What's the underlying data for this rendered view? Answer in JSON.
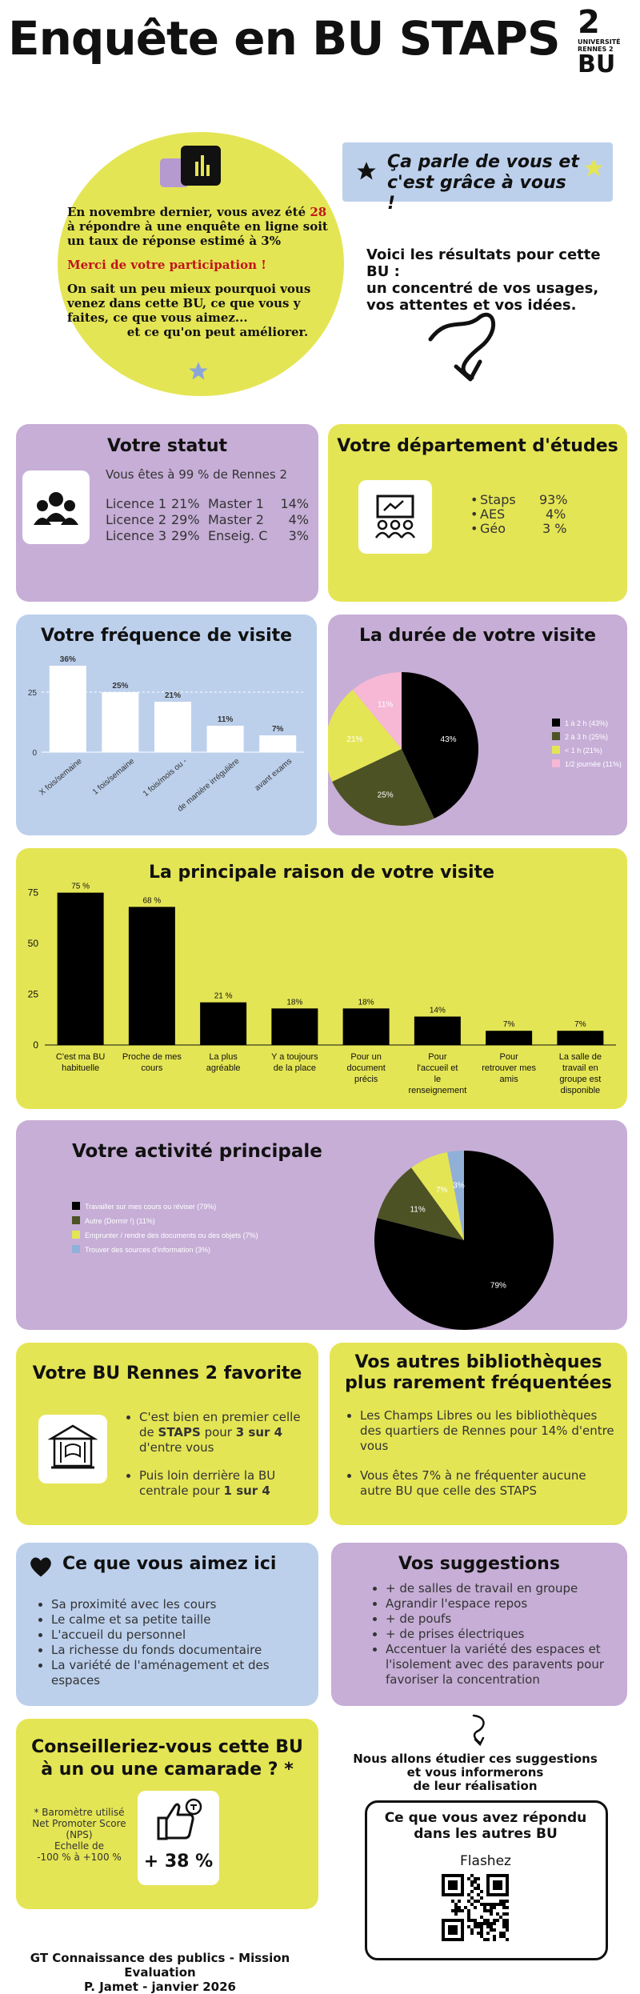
{
  "header": {
    "title": "Enquête en BU STAPS",
    "logo": {
      "number": "2",
      "line1": "UNIVERSITÉ",
      "line2": "RENNES 2",
      "bu": "BU"
    }
  },
  "intro": {
    "line1a": "En novembre dernier, vous avez été ",
    "line1num": "28",
    "line1b": " à répondre à une enquête en ligne soit un taux de réponse estimé à 3%",
    "thanks": "Merci de votre participation !",
    "outro": "On sait un peu mieux pourquoi vous venez dans cette BU, ce que vous y faites, ce que vous aimez...",
    "outro2": "et ce qu'on peut améliorer."
  },
  "badge": {
    "line1": "Ça parle de vous et",
    "line2": "c'est grâce à vous !"
  },
  "results": {
    "line1": "Voici les résultats pour cette BU :",
    "line2": "un concentré de vos usages,",
    "line3": "vos attentes et vos idées."
  },
  "statut": {
    "title": "Votre statut",
    "subtitle": "Vous êtes à 99 % de Rennes 2",
    "rows": [
      {
        "a": "Licence 1",
        "av": "21%",
        "b": "Master 1",
        "bv": "14%"
      },
      {
        "a": "Licence 2",
        "av": "29%",
        "b": "Master 2",
        "bv": "4%"
      },
      {
        "a": "Licence 3",
        "av": "29%",
        "b": "Enseig. C",
        "bv": "3%"
      }
    ]
  },
  "departement": {
    "title": "Votre département d'études",
    "items": [
      {
        "name": "Staps",
        "value": "93%"
      },
      {
        "name": "AES",
        "value": "4%"
      },
      {
        "name": "Géo",
        "value": "3 %"
      }
    ]
  },
  "chart_data": [
    {
      "id": "frequence",
      "type": "bar",
      "title": "Votre fréquence de visite",
      "categories": [
        "X fois/semaine",
        "1 fois/semaine",
        "1 fois/mois ou -",
        "de manière irrégulière",
        "avant exams"
      ],
      "values": [
        36,
        25,
        21,
        11,
        7
      ],
      "value_labels": [
        "36%",
        "25%",
        "21%",
        "11%",
        "7%"
      ],
      "yticks": [
        0,
        25
      ],
      "ylim": [
        0,
        38
      ]
    },
    {
      "id": "duree",
      "type": "pie",
      "title": "La durée de votre visite",
      "labels": [
        "1 à 2 h (43%)",
        "2 à 3 h (25%)",
        "< 1 h (21%)",
        "1/2 journée (11%)"
      ],
      "values": [
        43,
        25,
        21,
        11
      ],
      "value_labels": [
        "43%",
        "25%",
        "21%",
        "11%"
      ],
      "colors": [
        "#000000",
        "#4d5224",
        "#e4e554",
        "#f6b8d4"
      ]
    },
    {
      "id": "raison",
      "type": "bar",
      "title": "La principale raison de votre visite",
      "categories": [
        "C'est ma BU habituelle",
        "Proche de mes cours",
        "La plus agréable",
        "Y a toujours de la place",
        "Pour un document précis",
        "Pour l'accueil et le renseignement",
        "Pour retrouver mes amis",
        "La salle de travail en groupe est disponible"
      ],
      "values": [
        75,
        68,
        21,
        18,
        18,
        14,
        7,
        7
      ],
      "value_labels": [
        "75 %",
        "68 %",
        "21 %",
        "18%",
        "18%",
        "14%",
        "7%",
        "7%"
      ],
      "yticks": [
        0,
        25,
        50,
        75
      ],
      "ylim": [
        0,
        78
      ]
    },
    {
      "id": "activite",
      "type": "pie",
      "title": "Votre activité principale",
      "labels": [
        "Travailler sur mes cours ou réviser (79%)",
        "Autre (Dormir !) (11%)",
        "Emprunter / rendre des documents ou des objets (7%)",
        "Trouver des sources d'information (3%)"
      ],
      "values": [
        79,
        11,
        7,
        3
      ],
      "value_labels": [
        "79%",
        "11%",
        "7%",
        "3%"
      ],
      "colors": [
        "#000000",
        "#4d5224",
        "#e4e554",
        "#90b0d8"
      ]
    }
  ],
  "favorite": {
    "title": "Votre BU Rennes 2 favorite",
    "b1a": "C'est bien en premier celle de ",
    "b1strong": "STAPS",
    "b1b": " pour ",
    "b1strong2": "3 sur 4",
    "b1c": " d'entre vous",
    "b2a": "Puis loin derrière la BU centrale pour ",
    "b2strong": "1 sur 4"
  },
  "autres": {
    "title1": "Vos autres bibliothèques",
    "title2": "plus rarement fréquentées",
    "items": [
      "Les Champs Libres ou les bibliothèques des quartiers de Rennes  pour 14% d'entre vous",
      "Vous êtes 7% à ne fréquenter aucune autre BU que celle des STAPS"
    ]
  },
  "aimez": {
    "title": "Ce que vous aimez ici",
    "items": [
      "Sa proximité avec les cours",
      "Le calme et sa petite taille",
      "L'accueil du personnel",
      "La richesse du fonds documentaire",
      "La variété de l'aménagement et des espaces"
    ]
  },
  "suggestions": {
    "title": "Vos suggestions",
    "items": [
      "+ de salles de travail en groupe",
      "Agrandir l'espace repos",
      "+ de poufs",
      "+ de prises électriques",
      "Accentuer la variété des espaces et l'isolement avec des paravents pour favoriser la concentration"
    ]
  },
  "conseil": {
    "title1": "Conseilleriez-vous cette BU",
    "title2": "à un ou une camarade ? *",
    "note1": "* Baromètre utilisé",
    "note2": "Net Promoter Score",
    "note3": "(NPS)",
    "note4": "Echelle de",
    "note5": "-100 % à +100 %",
    "score": "+ 38 %"
  },
  "etudier": {
    "line1": "Nous allons étudier ces suggestions",
    "line2": "et vous informerons",
    "line3": "de leur réalisation"
  },
  "qr": {
    "line1": "Ce que vous avez répondu",
    "line2": "dans les autres BU",
    "flash": "Flashez"
  },
  "footer": {
    "line1": "GT Connaissance des publics - Mission Evaluation",
    "line2": "P. Jamet  - janvier 2026"
  }
}
